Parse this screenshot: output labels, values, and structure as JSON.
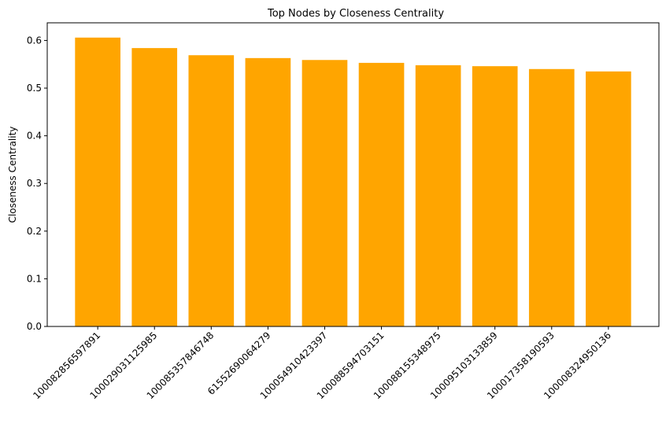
{
  "chart_data": {
    "type": "bar",
    "title": "Top Nodes by Closeness Centrality",
    "xlabel": "",
    "ylabel": "Closeness Centrality",
    "categories": [
      "100082856597891",
      "100029031125985",
      "100085357846748",
      "61552690064279",
      "100054910423397",
      "100088594703151",
      "100088155348975",
      "100095103133859",
      "100017358190593",
      "100008324950136"
    ],
    "values": [
      0.606,
      0.584,
      0.569,
      0.563,
      0.559,
      0.553,
      0.548,
      0.546,
      0.54,
      0.535
    ],
    "ylim": [
      0,
      0.637
    ],
    "yticks": [
      0.0,
      0.1,
      0.2,
      0.3,
      0.4,
      0.5,
      0.6
    ],
    "ytick_labels": [
      "0.0",
      "0.1",
      "0.2",
      "0.3",
      "0.4",
      "0.5",
      "0.6"
    ],
    "bar_color": "#ffa500",
    "grid": false,
    "legend": "none"
  }
}
